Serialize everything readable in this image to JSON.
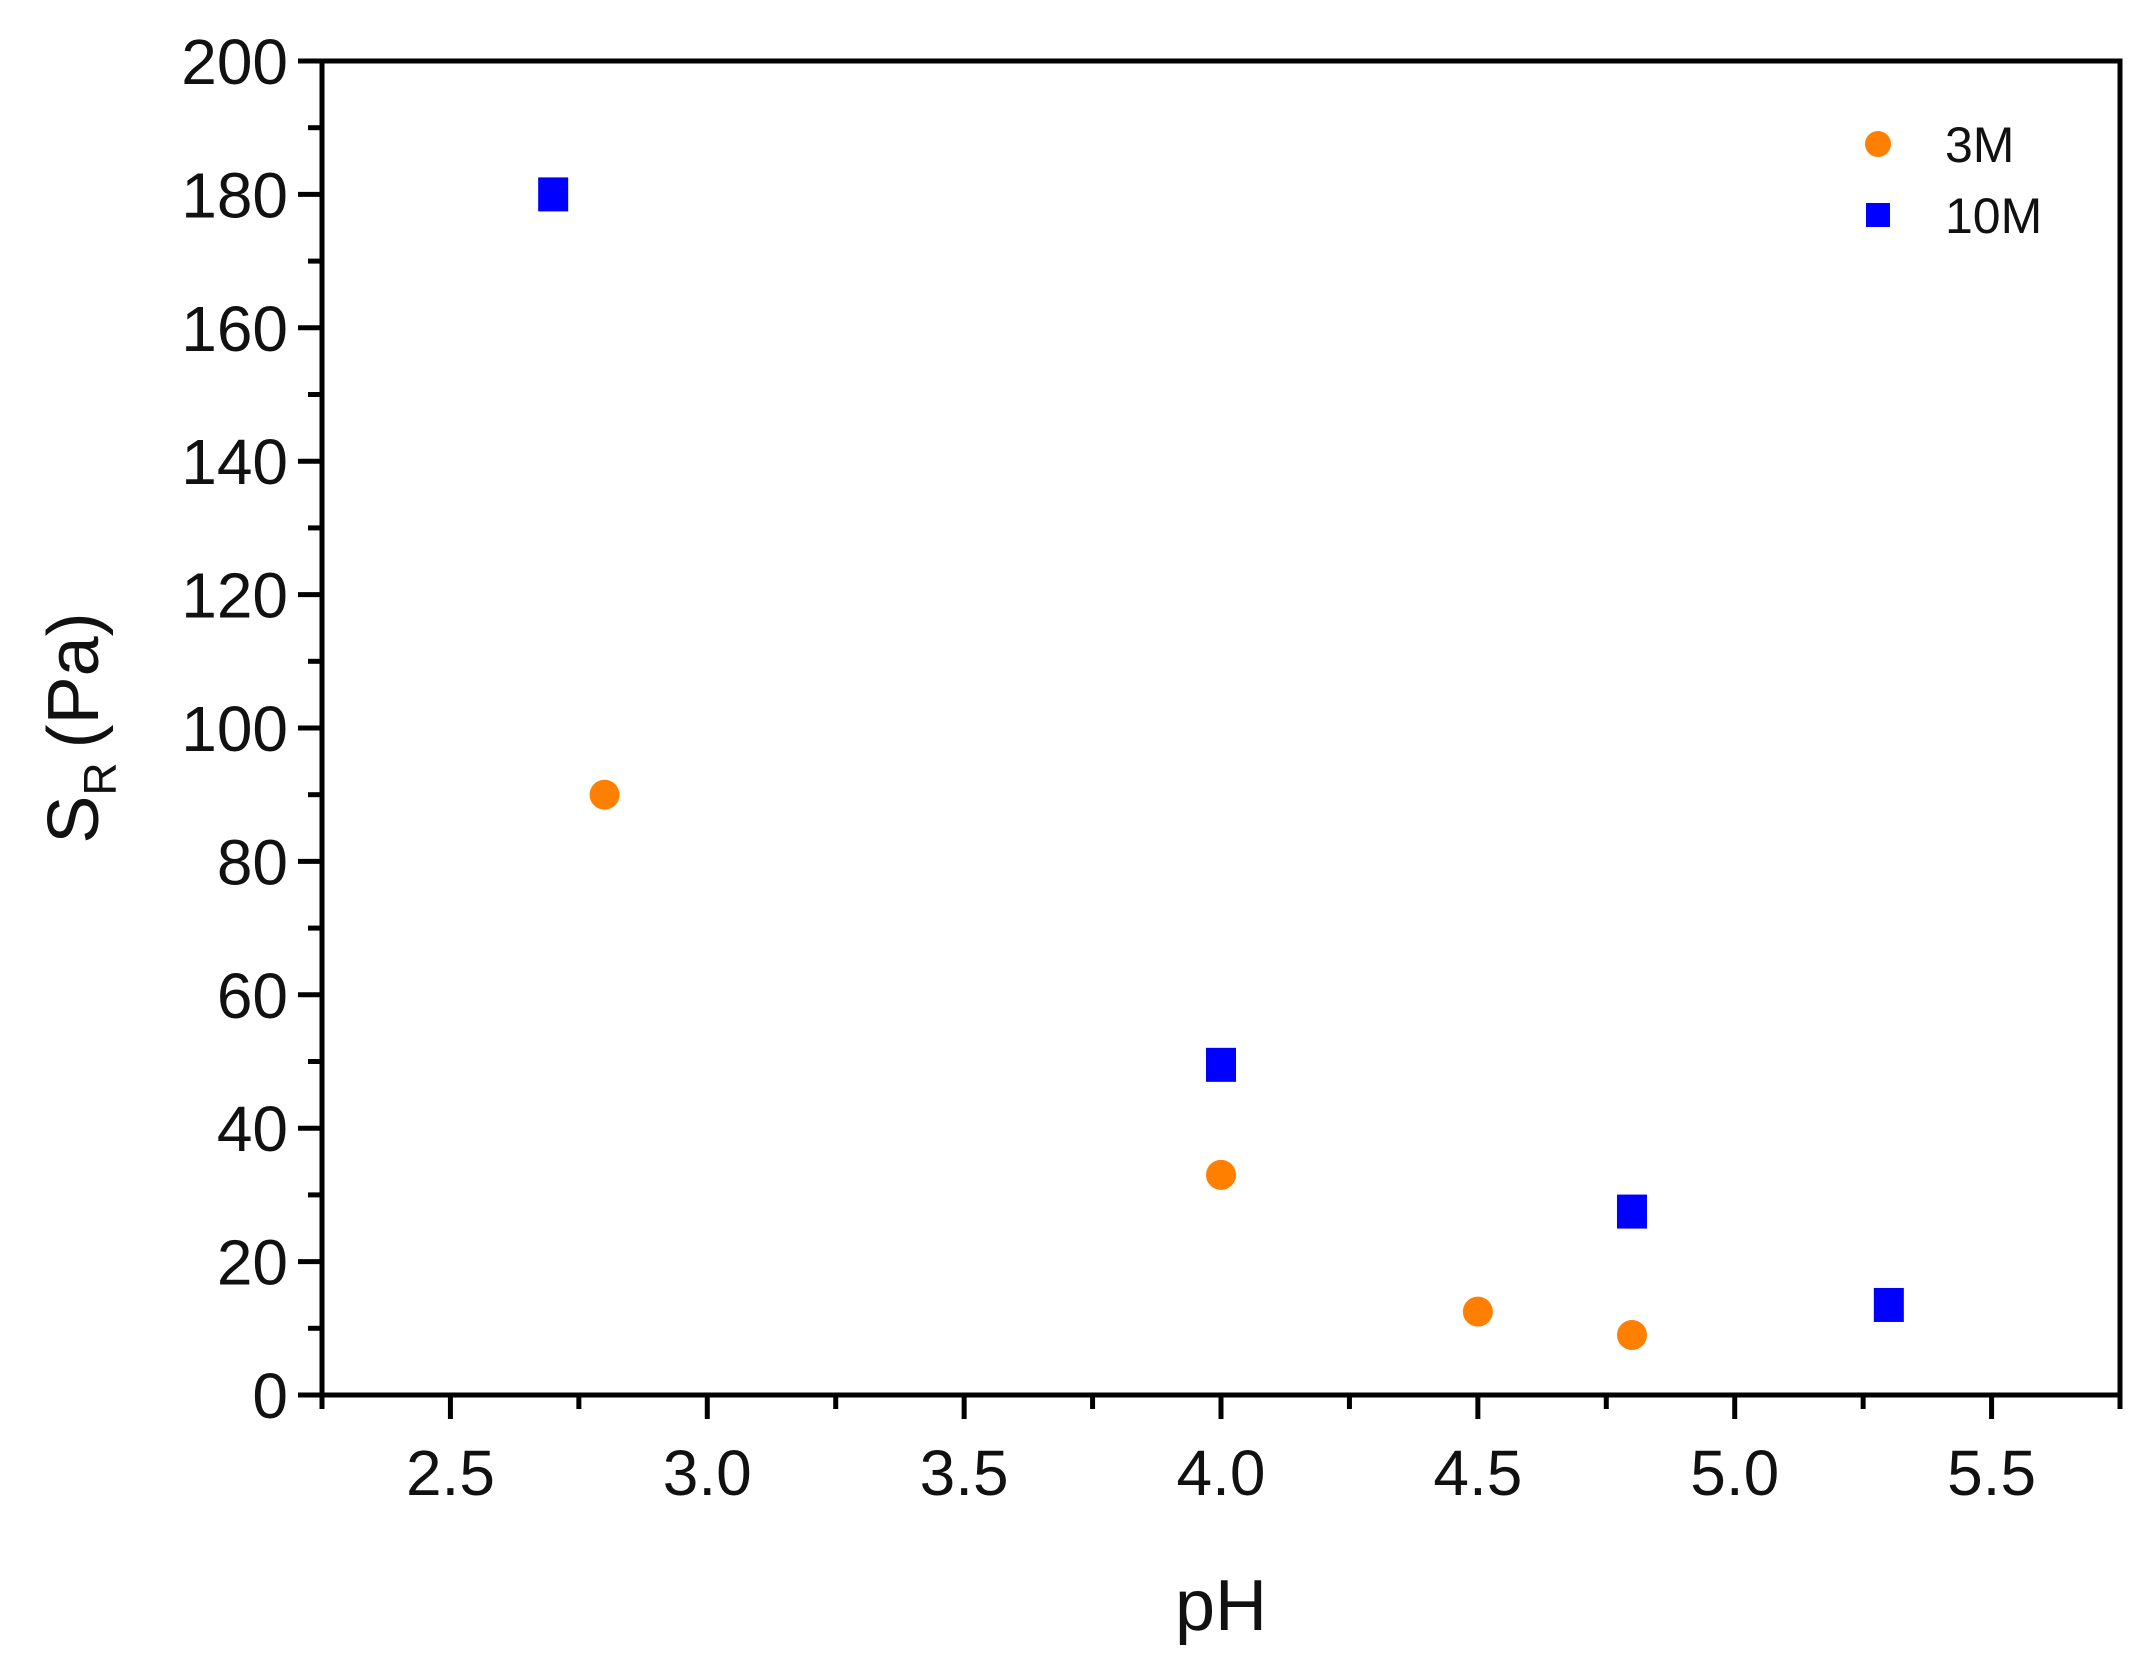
{
  "chart_data": {
    "type": "scatter",
    "xlabel": "pH",
    "ylabel_main": "S",
    "ylabel_sub": "R",
    "ylabel_unit": "(Pa)",
    "xlim": [
      2.25,
      5.75
    ],
    "ylim": [
      0,
      200
    ],
    "xticks": [
      "2.5",
      "3.0",
      "3.5",
      "4.0",
      "4.5",
      "5.0",
      "5.5"
    ],
    "yticks": [
      "0",
      "20",
      "40",
      "60",
      "80",
      "100",
      "120",
      "140",
      "160",
      "180",
      "200"
    ],
    "grid": false,
    "legend_position": "top-right",
    "series": [
      {
        "name": "3M",
        "marker": "circle",
        "color": "#FF8000",
        "x": [
          2.8,
          4.0,
          4.5,
          4.8
        ],
        "y": [
          90,
          33,
          12.5,
          9
        ]
      },
      {
        "name": "10M",
        "marker": "square",
        "color": "#0000FF",
        "x": [
          2.7,
          4.0,
          4.8,
          5.3
        ],
        "y": [
          180,
          49.5,
          27.5,
          13.5
        ]
      }
    ]
  }
}
